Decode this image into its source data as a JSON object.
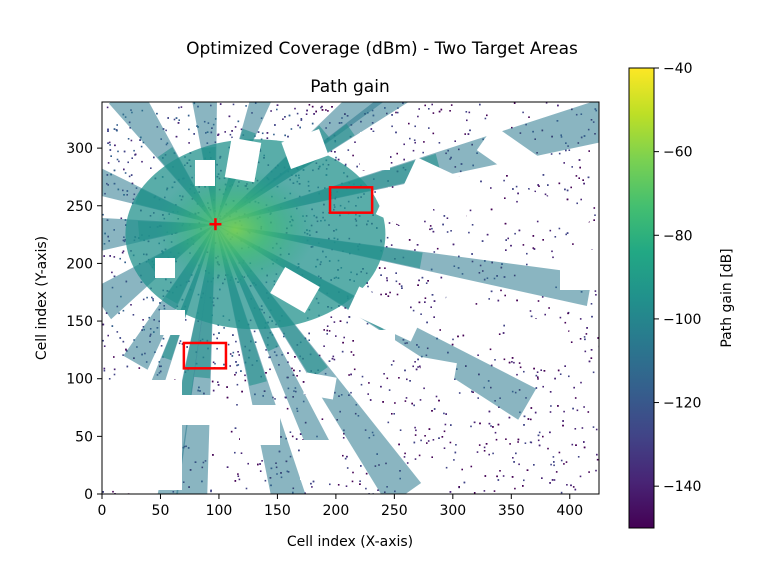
{
  "figure": {
    "suptitle": "Optimized Coverage (dBm) - Two Target Areas"
  },
  "chart_data": {
    "type": "heatmap",
    "title": "Path gain",
    "xlabel": "Cell index (X-axis)",
    "ylabel": "Cell index (Y-axis)",
    "xlim": [
      0,
      425
    ],
    "ylim": [
      0,
      340
    ],
    "xticks": [
      "0",
      "50",
      "100",
      "150",
      "200",
      "250",
      "300",
      "350",
      "400"
    ],
    "yticks": [
      "0",
      "50",
      "100",
      "150",
      "200",
      "250",
      "300"
    ],
    "colormap": "viridis",
    "colorbar": {
      "label": "Path gain [dB]",
      "range": [
        -150,
        -40
      ],
      "ticks": [
        "−40",
        "−60",
        "−80",
        "−100",
        "−120",
        "−140"
      ]
    },
    "transmitter": {
      "x": 97,
      "y": 234,
      "marker": "+",
      "color": "#ff0000"
    },
    "target_areas": [
      {
        "x0": 195,
        "x1": 231,
        "y0": 244,
        "y1": 266,
        "color": "#ff0000"
      },
      {
        "x0": 70,
        "x1": 106,
        "y0": 109,
        "y1": 131,
        "color": "#ff0000"
      }
    ]
  }
}
